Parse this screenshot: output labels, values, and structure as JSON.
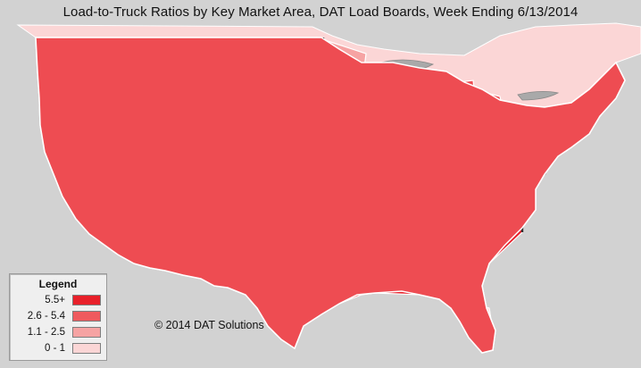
{
  "title": "Load-to-Truck Ratios by Key Market Area, DAT Load Boards, Week Ending 6/13/2014",
  "copyright": "© 2014 DAT Solutions",
  "legend": {
    "title": "Legend",
    "items": [
      {
        "label": "5.5+",
        "color": "#e8202a"
      },
      {
        "label": "2.6 - 5.4",
        "color": "#ef5a5e"
      },
      {
        "label": "1.1 - 2.5",
        "color": "#f6a3a3"
      },
      {
        "label": "0 - 1",
        "color": "#fbd6d6"
      }
    ]
  },
  "colors": {
    "background": "#d2d2d2",
    "canada": "#fbd6d6",
    "state_border": "#3a3a3a",
    "region_border": "#ffffff"
  }
}
